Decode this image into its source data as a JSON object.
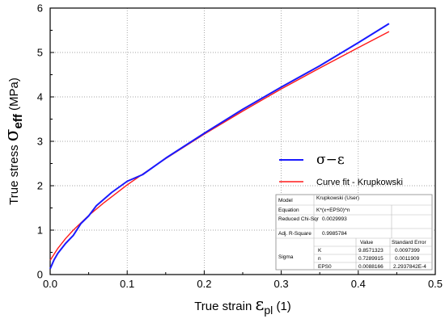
{
  "chart_data": {
    "type": "line",
    "xlabel": {
      "prefix": "True strain ",
      "symbol": "ε",
      "sub": "pl",
      "unit": " (1)"
    },
    "ylabel": {
      "prefix": "True stress ",
      "symbol": "σ",
      "sub": "eff",
      "unit": " (MPa)"
    },
    "xlim": [
      0.0,
      0.5
    ],
    "ylim": [
      0,
      6
    ],
    "x_ticks": [
      "0.0",
      "0.1",
      "0.2",
      "0.3",
      "0.4",
      "0.5"
    ],
    "y_ticks": [
      "0",
      "1",
      "2",
      "3",
      "4",
      "5",
      "6"
    ],
    "grid": true,
    "legend_position": "right",
    "series": [
      {
        "name": "σ−ε",
        "color": "#1a1aff",
        "x": [
          0,
          0.005,
          0.01,
          0.02,
          0.03,
          0.04,
          0.05,
          0.06,
          0.08,
          0.1,
          0.12,
          0.15,
          0.2,
          0.25,
          0.3,
          0.35,
          0.4,
          0.44
        ],
        "y": [
          0.13,
          0.33,
          0.48,
          0.7,
          0.88,
          1.15,
          1.32,
          1.55,
          1.85,
          2.1,
          2.25,
          2.62,
          3.18,
          3.72,
          4.22,
          4.7,
          5.22,
          5.65
        ]
      },
      {
        "name": "Curve fit - Krupkowski",
        "color": "#ff1a1a",
        "x": [
          0,
          0.01,
          0.02,
          0.03,
          0.05,
          0.07,
          0.1,
          0.12,
          0.15,
          0.2,
          0.25,
          0.3,
          0.35,
          0.4,
          0.44
        ],
        "y": [
          0.32,
          0.59,
          0.81,
          1.0,
          1.33,
          1.62,
          2.02,
          2.26,
          2.61,
          3.16,
          3.68,
          4.18,
          4.65,
          5.11,
          5.47
        ]
      }
    ],
    "fit_table": {
      "rows": [
        [
          "Model",
          "Krupkowski (User)"
        ],
        [
          "Equation",
          "K*(x+EPS0)^n"
        ],
        [
          "Reduced Chi-Sqr",
          "0.0029993"
        ],
        [
          "Adj. R-Square",
          "0.9985784"
        ]
      ],
      "params_header": [
        "",
        "",
        "Value",
        "Standard Error"
      ],
      "params_group": "Sigma",
      "params": [
        [
          "K",
          "9.8571323",
          "0.0097399"
        ],
        [
          "n",
          "0.7289915",
          "0.0011909"
        ],
        [
          "EPS0",
          "0.0088166",
          "2.2937842E-4"
        ]
      ]
    }
  }
}
